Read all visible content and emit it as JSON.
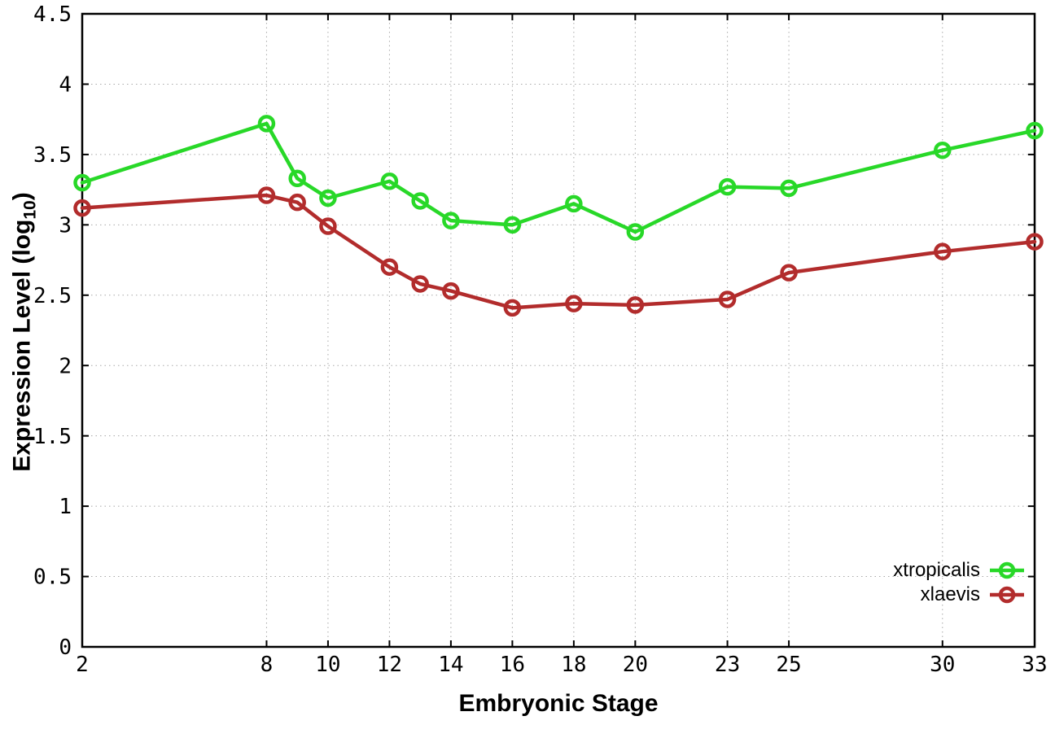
{
  "figure": {
    "xlabel": "Embryonic Stage",
    "ylabel_pre": "Expression Level (log",
    "ylabel_sub": "10",
    "ylabel_post": ")",
    "background": "#ffffff",
    "grid_color": "#a8a8a8",
    "border_color": "#000000"
  },
  "legend": {
    "position": "bottom-right",
    "items": [
      {
        "label": "xtropicalis",
        "color": "#28d828"
      },
      {
        "label": "xlaevis",
        "color": "#b22c2c"
      }
    ]
  },
  "chart_data": {
    "type": "line",
    "title": "",
    "xlabel": "Embryonic Stage",
    "ylabel": "Expression Level (log10)",
    "xlim": [
      2,
      33
    ],
    "ylim": [
      0,
      4.5
    ],
    "grid": true,
    "marker": "open-circle",
    "legend_position": "bottom-right",
    "x": [
      2,
      8,
      9,
      10,
      12,
      13,
      14,
      16,
      18,
      20,
      23,
      25,
      30,
      33
    ],
    "series": [
      {
        "name": "xtropicalis",
        "color": "#28d828",
        "values": [
          3.3,
          3.72,
          3.33,
          3.19,
          3.31,
          3.17,
          3.03,
          3.0,
          3.15,
          2.95,
          3.27,
          3.26,
          3.53,
          3.67
        ]
      },
      {
        "name": "xlaevis",
        "color": "#b22c2c",
        "values": [
          3.12,
          3.21,
          3.16,
          2.99,
          2.7,
          2.58,
          2.53,
          2.41,
          2.44,
          2.43,
          2.47,
          2.66,
          2.81,
          2.88
        ]
      }
    ],
    "xticks": {
      "values": [
        2,
        8,
        10,
        12,
        14,
        16,
        18,
        20,
        23,
        25,
        30,
        33
      ],
      "labels": [
        "2",
        "8",
        "10",
        "12",
        "14",
        "16",
        "18",
        "20",
        "23",
        "25",
        "30",
        "33"
      ]
    },
    "yticks": {
      "values": [
        0,
        0.5,
        1,
        1.5,
        2,
        2.5,
        3,
        3.5,
        4,
        4.5
      ],
      "labels": [
        "0",
        "0.5",
        "1",
        "1.5",
        "2",
        "2.5",
        "3",
        "3.5",
        "4",
        "4.5"
      ]
    },
    "x_gridlines": [
      8,
      10,
      12,
      14,
      16,
      18,
      20,
      23,
      25,
      30
    ],
    "y_gridlines": [
      0.5,
      1,
      1.5,
      2,
      2.5,
      3,
      3.5,
      4
    ]
  }
}
